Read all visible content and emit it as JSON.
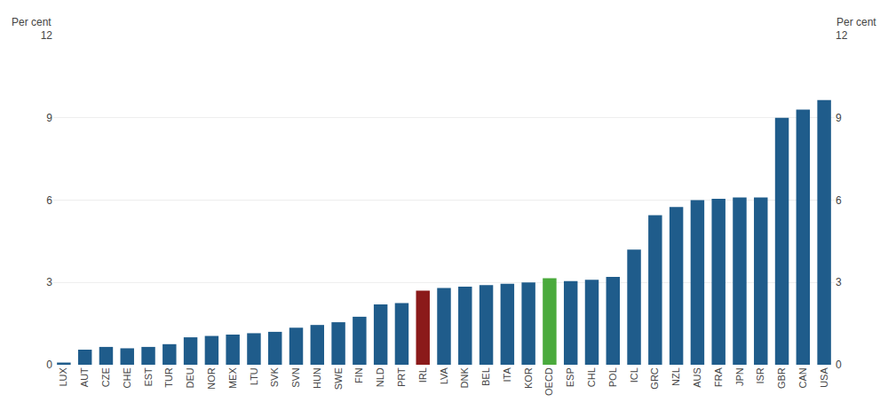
{
  "chart_data": {
    "type": "bar",
    "categories": [
      "LUX",
      "AUT",
      "CZE",
      "CHE",
      "EST",
      "TUR",
      "DEU",
      "NOR",
      "MEX",
      "LTU",
      "SVK",
      "SVN",
      "HUN",
      "SWE",
      "FIN",
      "NLD",
      "PRT",
      "IRL",
      "LVA",
      "DNK",
      "BEL",
      "ITA",
      "KOR",
      "OECD",
      "ESP",
      "CHL",
      "POL",
      "ICL",
      "GRC",
      "NZL",
      "AUS",
      "FRA",
      "JPN",
      "ISR",
      "GBR",
      "CAN",
      "USA"
    ],
    "values": [
      0.08,
      0.55,
      0.65,
      0.6,
      0.65,
      0.75,
      1.0,
      1.05,
      1.1,
      1.15,
      1.2,
      1.35,
      1.45,
      1.55,
      1.75,
      2.2,
      2.25,
      2.7,
      2.8,
      2.85,
      2.9,
      2.95,
      3.0,
      3.15,
      3.05,
      3.1,
      3.2,
      4.2,
      5.45,
      5.75,
      6.0,
      6.05,
      6.1,
      6.1,
      9.0,
      9.3,
      9.65
    ],
    "colors": [
      "#1f5c8b",
      "#1f5c8b",
      "#1f5c8b",
      "#1f5c8b",
      "#1f5c8b",
      "#1f5c8b",
      "#1f5c8b",
      "#1f5c8b",
      "#1f5c8b",
      "#1f5c8b",
      "#1f5c8b",
      "#1f5c8b",
      "#1f5c8b",
      "#1f5c8b",
      "#1f5c8b",
      "#1f5c8b",
      "#1f5c8b",
      "#8b1a1a",
      "#1f5c8b",
      "#1f5c8b",
      "#1f5c8b",
      "#1f5c8b",
      "#1f5c8b",
      "#4aaa3c",
      "#1f5c8b",
      "#1f5c8b",
      "#1f5c8b",
      "#1f5c8b",
      "#1f5c8b",
      "#1f5c8b",
      "#1f5c8b",
      "#1f5c8b",
      "#1f5c8b",
      "#1f5c8b",
      "#1f5c8b",
      "#1f5c8b",
      "#1f5c8b"
    ],
    "ylim": [
      0,
      12
    ],
    "yticks": [
      0,
      3,
      6,
      9,
      12
    ],
    "y2lim": [
      0,
      12
    ],
    "y2ticks": [
      0,
      3,
      6,
      9,
      12
    ],
    "ylabel": "Per cent",
    "y2label": "Per cent",
    "grid": true
  }
}
